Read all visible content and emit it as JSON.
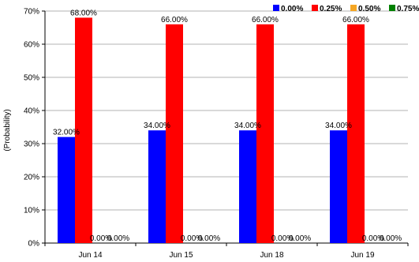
{
  "chart_data": {
    "type": "bar",
    "title": "",
    "xlabel": "",
    "ylabel": "(Probability)",
    "ylim": [
      0,
      70
    ],
    "yticks": [
      "0%",
      "10%",
      "20%",
      "30%",
      "40%",
      "50%",
      "60%",
      "70%"
    ],
    "categories": [
      "Jun 14",
      "Jun 15",
      "Jun 18",
      "Jun 19"
    ],
    "grid": true,
    "legend_position": "top-right",
    "series": [
      {
        "name": "0.00%",
        "color": "#0000ff",
        "values": [
          32,
          34,
          34,
          34
        ],
        "labels": [
          "32.00%",
          "34.00%",
          "34.00%",
          "34.00%"
        ]
      },
      {
        "name": "0.25%",
        "color": "#ff0000",
        "values": [
          68,
          66,
          66,
          66
        ],
        "labels": [
          "68.00%",
          "66.00%",
          "66.00%",
          "66.00%"
        ]
      },
      {
        "name": "0.50%",
        "color": "#f5a623",
        "values": [
          0,
          0,
          0,
          0
        ],
        "labels": [
          "0.00%",
          "0.00%",
          "0.00%",
          "0.00%"
        ]
      },
      {
        "name": "0.75%",
        "color": "#008000",
        "values": [
          0,
          0,
          0,
          0
        ],
        "labels": [
          "0.00%",
          "0.00%",
          "0.00%",
          "0.00%"
        ]
      }
    ]
  }
}
